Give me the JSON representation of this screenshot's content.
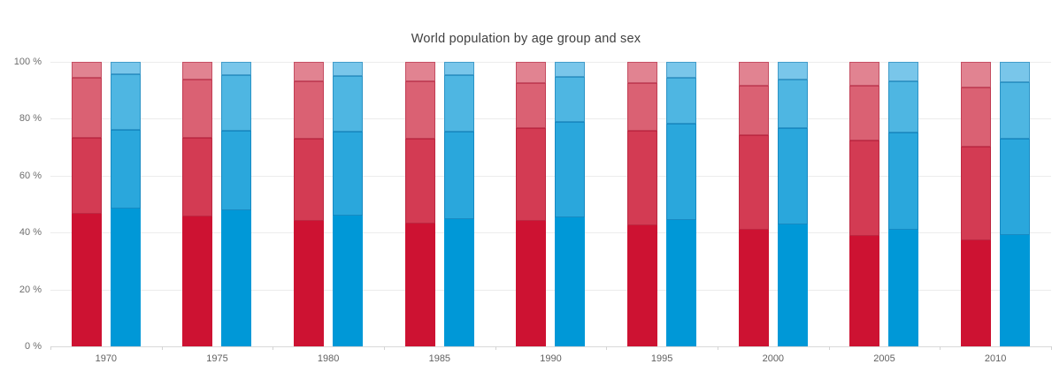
{
  "chart_data": {
    "type": "bar",
    "stacked": true,
    "title": "World population by age group and sex",
    "categories": [
      "1970",
      "1975",
      "1980",
      "1985",
      "1990",
      "1995",
      "2000",
      "2005",
      "2010"
    ],
    "ylim": [
      0,
      100
    ],
    "ytick_values": [
      0,
      20,
      40,
      60,
      80,
      100
    ],
    "ytick_labels": [
      "0 %",
      "20 %",
      "40 %",
      "60 %",
      "80 %",
      "100 %"
    ],
    "grid": "horizontal",
    "legend": "none",
    "unit": "%",
    "stack_order_note": "four stacked segments per bar, bottom to top, darkest to lightest; each bar totals 100 %",
    "series": [
      {
        "name": "red-bar-left",
        "segment_colors": [
          "#cd1232",
          "#d33b53",
          "#da6173",
          "#e18391"
        ],
        "segment_border_color": "rgba(165,15,45,0.45)",
        "values": [
          [
            46.5,
            26.8,
            21.0,
            5.7
          ],
          [
            45.7,
            27.6,
            20.5,
            6.2
          ],
          [
            44.2,
            28.9,
            20.2,
            6.7
          ],
          [
            43.2,
            29.8,
            20.2,
            6.8
          ],
          [
            44.0,
            32.6,
            16.1,
            7.3
          ],
          [
            42.7,
            33.2,
            16.6,
            7.5
          ],
          [
            41.1,
            33.0,
            17.6,
            8.3
          ],
          [
            38.8,
            33.7,
            19.0,
            8.5
          ],
          [
            37.3,
            32.9,
            20.8,
            9.0
          ]
        ]
      },
      {
        "name": "blue-bar-right",
        "segment_colors": [
          "#0098d7",
          "#2aa7dc",
          "#4eb6e2",
          "#79c6ea"
        ],
        "segment_border_color": "rgba(0,105,165,0.45)",
        "values": [
          [
            48.6,
            27.4,
            19.6,
            4.4
          ],
          [
            47.7,
            28.2,
            19.4,
            4.7
          ],
          [
            46.0,
            29.6,
            19.5,
            4.9
          ],
          [
            44.8,
            30.8,
            19.7,
            4.7
          ],
          [
            45.5,
            33.4,
            15.9,
            5.2
          ],
          [
            44.5,
            33.8,
            16.0,
            5.7
          ],
          [
            42.9,
            33.7,
            17.3,
            6.1
          ],
          [
            40.9,
            34.3,
            18.1,
            6.7
          ],
          [
            39.0,
            34.0,
            20.0,
            7.0
          ]
        ]
      }
    ],
    "colors": {
      "background": "#ffffff",
      "gridline": "#ececec",
      "axis_line": "#d9d9d9",
      "tick": "#d4d4d4",
      "axis_label_text": "#6e6e6e",
      "title_text": "#3f3f3f"
    }
  }
}
